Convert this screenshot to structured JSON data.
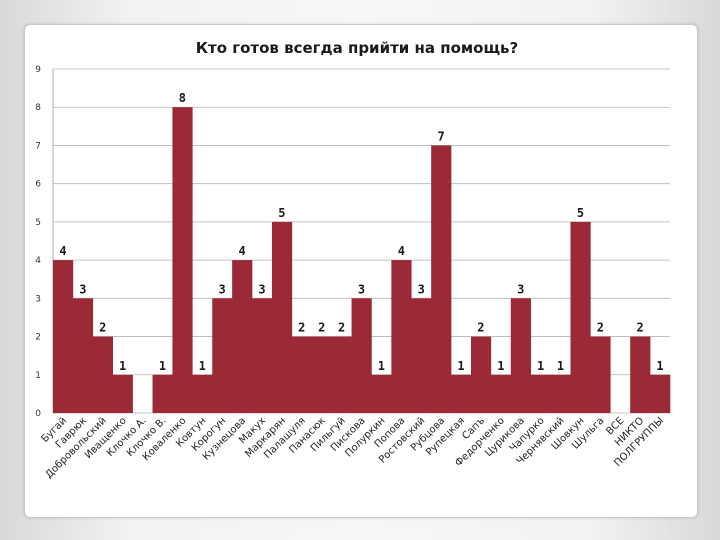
{
  "chart_data": {
    "type": "bar",
    "title": "Кто готов всегда прийти на помощь?",
    "xlabel": "",
    "ylabel": "",
    "ylim": [
      0,
      9
    ],
    "yticks": [
      0,
      1,
      2,
      3,
      4,
      5,
      6,
      7,
      8,
      9
    ],
    "grid": true,
    "legend": "none",
    "bar_color": "#9b2a36",
    "categories": [
      "Бугай",
      "Гаврюк",
      "Добровольский",
      "Иващенко",
      "Клочко А.",
      "Клочко В.",
      "Коваленко",
      "Ковтун",
      "Корогун",
      "Кузнецова",
      "Макух",
      "Маркарян",
      "Палашуля",
      "Панасюк",
      "Пильгуй",
      "Пискова",
      "Полуркин",
      "Попова",
      "Ростовский",
      "Рубцова",
      "Рупецкая",
      "Сапъ",
      "Федорченко",
      "Цуриковa",
      "Чапурко",
      "Чернявский",
      "Шовкун",
      "Шульга",
      "ВСЕ",
      "НИКТО",
      "ПОЛГРУППЫ"
    ],
    "values": [
      4,
      3,
      2,
      1,
      null,
      1,
      8,
      1,
      3,
      4,
      3,
      5,
      2,
      2,
      2,
      3,
      1,
      4,
      3,
      7,
      1,
      2,
      1,
      3,
      1,
      1,
      5,
      2,
      null,
      2,
      1
    ]
  }
}
